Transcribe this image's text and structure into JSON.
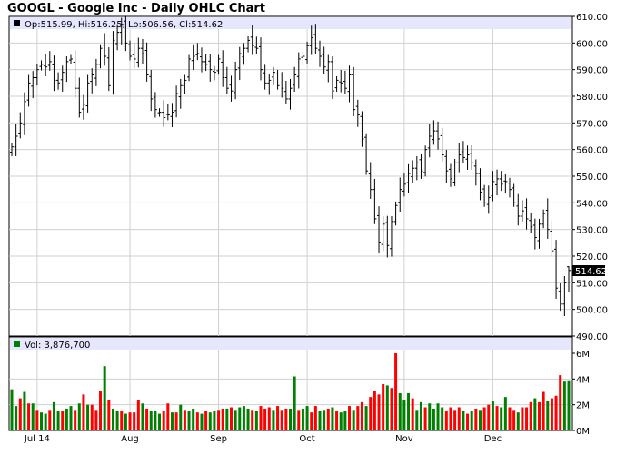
{
  "title": "GOOGL - Google Inc - Daily OHLC Chart",
  "price_legend": "Op:515.99, Hi:516.25, Lo:506.56, Cl:514.62",
  "volume_legend": "Vol: 3,876,700",
  "last_close_label": "514.62",
  "colors": {
    "legend_bg": "#e6e6ff",
    "price_bar": "#000000",
    "vol_up": "#008000",
    "vol_down": "#ff0000",
    "grid": "#d0d0d0",
    "label_box": "#000000"
  },
  "chart_data": [
    {
      "type": "ohlc",
      "title": "GOOGL - Google Inc - Daily OHLC Chart",
      "ylim": [
        490,
        610
      ],
      "y_ticks": [
        "610.00",
        "600.00",
        "590.00",
        "580.00",
        "570.00",
        "560.00",
        "550.00",
        "540.00",
        "530.00",
        "520.00",
        "510.00",
        "500.00",
        "490.00"
      ],
      "x_labels": [
        "Jul 14",
        "Aug",
        "Sep",
        "Oct",
        "Nov",
        "Dec"
      ],
      "grid": true,
      "series": [
        {
          "name": "GOOGL",
          "last": {
            "open": 515.99,
            "high": 516.25,
            "low": 506.56,
            "close": 514.62
          },
          "closes": [
            561,
            565,
            570,
            578,
            585,
            587,
            590,
            592,
            591,
            593,
            586,
            585,
            589,
            593,
            594,
            583,
            574,
            577,
            585,
            588,
            592,
            598,
            595,
            584,
            601,
            604,
            607,
            600,
            595,
            594,
            598,
            596,
            588,
            579,
            575,
            574,
            572,
            573,
            574,
            581,
            584,
            586,
            594,
            595,
            596,
            593,
            592,
            590,
            589,
            594,
            587,
            583,
            582,
            590,
            596,
            598,
            601,
            599,
            598,
            590,
            585,
            586,
            589,
            584,
            583,
            579,
            583,
            588,
            594,
            595,
            599,
            602,
            598,
            595,
            591,
            593,
            582,
            586,
            585,
            583,
            588,
            575,
            573,
            564,
            552,
            545,
            534,
            525,
            532,
            524,
            533,
            539,
            545,
            547,
            551,
            553,
            555,
            552,
            560,
            565,
            567,
            564,
            558,
            552,
            549,
            555,
            558,
            557,
            558,
            555,
            551,
            544,
            540,
            542,
            548,
            549,
            547,
            548,
            545,
            540,
            535,
            537,
            534,
            531,
            527,
            532,
            536,
            530,
            522,
            508,
            502,
            510,
            514.62
          ]
        }
      ]
    },
    {
      "type": "bar",
      "title": "Volume",
      "ylim": [
        0,
        6
      ],
      "y_ticks": [
        "6M",
        "4M",
        "2M",
        "0M"
      ],
      "unit": "M",
      "values": [
        3.2,
        1.9,
        2.5,
        3.0,
        2.1,
        2.1,
        1.6,
        1.4,
        1.3,
        1.6,
        2.2,
        1.5,
        1.5,
        1.7,
        1.9,
        1.6,
        2.1,
        2.8,
        2.0,
        2.0,
        1.6,
        3.1,
        5.0,
        2.4,
        1.7,
        1.5,
        1.5,
        1.3,
        1.4,
        1.4,
        2.4,
        2.1,
        1.7,
        1.5,
        1.5,
        1.3,
        1.5,
        2.1,
        1.4,
        1.4,
        2.0,
        1.6,
        1.5,
        1.7,
        1.4,
        1.3,
        1.5,
        1.4,
        1.5,
        1.6,
        1.7,
        1.7,
        1.8,
        1.6,
        1.8,
        1.9,
        1.7,
        1.6,
        1.5,
        1.9,
        1.7,
        1.8,
        1.6,
        1.9,
        1.6,
        1.7,
        1.7,
        4.2,
        1.6,
        1.7,
        1.9,
        1.4,
        1.9,
        1.5,
        1.6,
        1.7,
        1.8,
        1.5,
        1.4,
        1.5,
        1.9,
        1.6,
        1.9,
        2.2,
        1.9,
        2.6,
        3.1,
        2.8,
        3.6,
        3.5,
        3.3,
        6.0,
        2.9,
        2.4,
        2.9,
        2.5,
        1.6,
        2.2,
        1.8,
        2.1,
        1.7,
        2.1,
        1.8,
        1.5,
        1.8,
        1.6,
        1.8,
        1.5,
        1.3,
        1.5,
        1.7,
        1.6,
        1.8,
        2.0,
        2.3,
        1.9,
        1.8,
        2.6,
        1.8,
        1.6,
        1.4,
        1.8,
        1.8,
        2.2,
        2.5,
        2.2,
        3.0,
        2.3,
        2.5,
        2.7,
        4.3,
        3.8,
        3.9
      ],
      "up": [
        1,
        1,
        0,
        1,
        0,
        1,
        0,
        1,
        1,
        0,
        1,
        1,
        0,
        1,
        1,
        0,
        1,
        0,
        1,
        0,
        0,
        0,
        1,
        0,
        1,
        1,
        0,
        1,
        0,
        0,
        0,
        1,
        0,
        1,
        1,
        1,
        0,
        0,
        1,
        0,
        1,
        0,
        1,
        1,
        0,
        1,
        0,
        1,
        1,
        0,
        0,
        1,
        0,
        1,
        1,
        1,
        1,
        0,
        1,
        0,
        0,
        0,
        1,
        0,
        0,
        0,
        1,
        1,
        0,
        1,
        1,
        0,
        0,
        1,
        1,
        0,
        1,
        0,
        1,
        1,
        0,
        1,
        0,
        0,
        1,
        0,
        0,
        0,
        0,
        1,
        0,
        0,
        1,
        1,
        1,
        0,
        1,
        1,
        0,
        1,
        1,
        1,
        1,
        0,
        0,
        0,
        0,
        1,
        0,
        1,
        0,
        1,
        0,
        0,
        1,
        0,
        1,
        1,
        0,
        0,
        1,
        0,
        0,
        0,
        1,
        0,
        0,
        1,
        0,
        0,
        0,
        1,
        1
      ]
    }
  ]
}
